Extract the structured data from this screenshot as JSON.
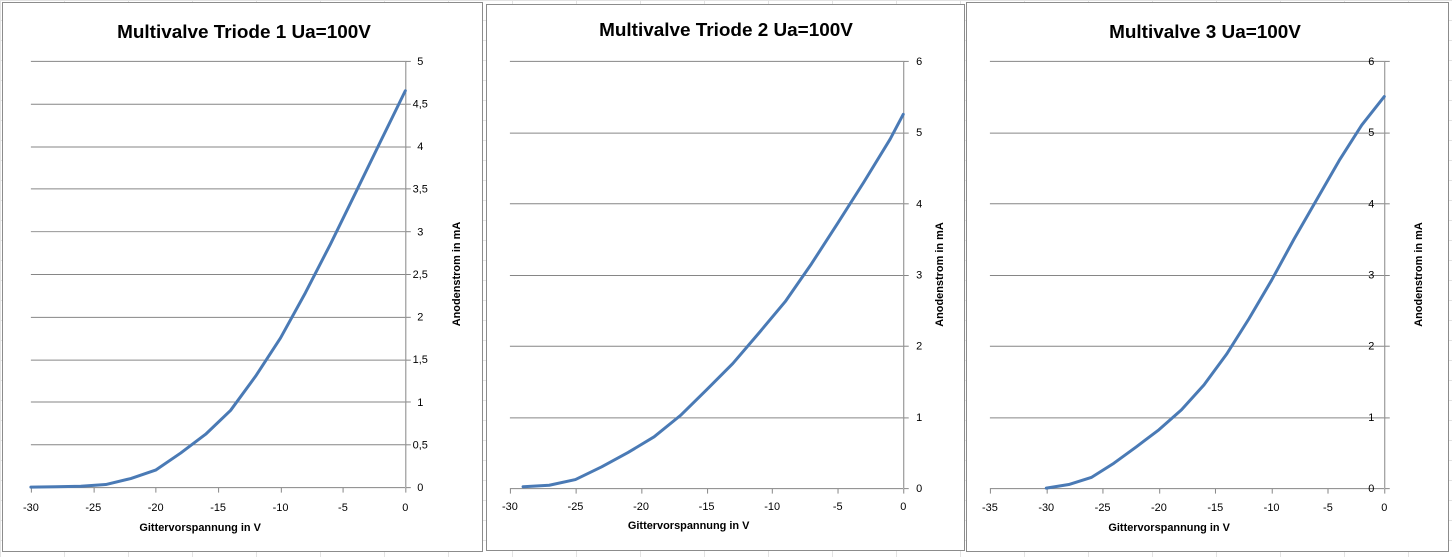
{
  "chart_data": [
    {
      "type": "line",
      "title": "Multivalve Triode 1 Ua=100V",
      "xlabel": "Gittervorspannung  in V",
      "ylabel": "Anodenstrom in  mA",
      "xlim": [
        -30,
        0
      ],
      "ylim": [
        0,
        5
      ],
      "x_ticks": [
        -30,
        -25,
        -20,
        -15,
        -10,
        -5,
        0
      ],
      "x_tick_labels": [
        "-30",
        "-25",
        "-20",
        "-15",
        "-10",
        "-5",
        "0"
      ],
      "y_ticks": [
        0,
        0.5,
        1,
        1.5,
        2,
        2.5,
        3,
        3.5,
        4,
        4.5,
        5
      ],
      "y_tick_labels": [
        "0",
        "0,5",
        "1",
        "1,5",
        "2",
        "2,5",
        "3",
        "3,5",
        "4",
        "4,5",
        "5"
      ],
      "y_axis_side": "right",
      "grid": true,
      "series": [
        {
          "color": "#4a7ab5",
          "x": [
            -30,
            -28,
            -26,
            -24,
            -22,
            -20,
            -18,
            -16,
            -14,
            -12,
            -10,
            -8,
            -6,
            -4,
            -2,
            -1,
            0
          ],
          "y": [
            0,
            0.005,
            0.01,
            0.03,
            0.1,
            0.2,
            0.4,
            0.62,
            0.9,
            1.3,
            1.75,
            2.28,
            2.85,
            3.45,
            4.05,
            4.35,
            4.65
          ]
        }
      ]
    },
    {
      "type": "line",
      "title": "Multivalve Triode 2 Ua=100V",
      "xlabel": "Gittervorspannung  in V",
      "ylabel": "Anodenstrom in  mA",
      "xlim": [
        -30,
        0
      ],
      "ylim": [
        0,
        6
      ],
      "x_ticks": [
        -30,
        -25,
        -20,
        -15,
        -10,
        -5,
        0
      ],
      "x_tick_labels": [
        "-30",
        "-25",
        "-20",
        "-15",
        "-10",
        "-5",
        "0"
      ],
      "y_ticks": [
        0,
        1,
        2,
        3,
        4,
        5,
        6
      ],
      "y_tick_labels": [
        "0",
        "1",
        "2",
        "3",
        "4",
        "5",
        "6"
      ],
      "y_axis_side": "right",
      "grid": true,
      "series": [
        {
          "color": "#4a7ab5",
          "x": [
            -29,
            -27,
            -25,
            -23,
            -21,
            -19,
            -17,
            -15,
            -13,
            -11,
            -9,
            -7,
            -5,
            -3,
            -1,
            0
          ],
          "y": [
            0.02,
            0.04,
            0.12,
            0.3,
            0.5,
            0.72,
            1.02,
            1.38,
            1.75,
            2.18,
            2.62,
            3.15,
            3.72,
            4.3,
            4.9,
            5.25
          ]
        }
      ]
    },
    {
      "type": "line",
      "title": "Multivalve 3 Ua=100V",
      "xlabel": "Gittervorspannung  in V",
      "ylabel": "Anodenstrom in  mA",
      "xlim": [
        -35,
        0
      ],
      "ylim": [
        0,
        6
      ],
      "x_ticks": [
        -35,
        -30,
        -25,
        -20,
        -15,
        -10,
        -5,
        0
      ],
      "x_tick_labels": [
        "-35",
        "-30",
        "-25",
        "-20",
        "-15",
        "-10",
        "-5",
        "0"
      ],
      "y_ticks": [
        0,
        1,
        2,
        3,
        4,
        5,
        6
      ],
      "y_tick_labels": [
        "0",
        "1",
        "2",
        "3",
        "4",
        "5",
        "6"
      ],
      "y_axis_side": "right",
      "grid": true,
      "series": [
        {
          "color": "#4a7ab5",
          "x": [
            -30,
            -28,
            -26,
            -24,
            -22,
            -20,
            -18,
            -16,
            -14,
            -12,
            -10,
            -8,
            -6,
            -4,
            -2,
            -1,
            0
          ],
          "y": [
            0,
            0.05,
            0.15,
            0.35,
            0.58,
            0.82,
            1.1,
            1.45,
            1.88,
            2.38,
            2.92,
            3.5,
            4.05,
            4.6,
            5.1,
            5.3,
            5.5
          ]
        }
      ]
    }
  ]
}
